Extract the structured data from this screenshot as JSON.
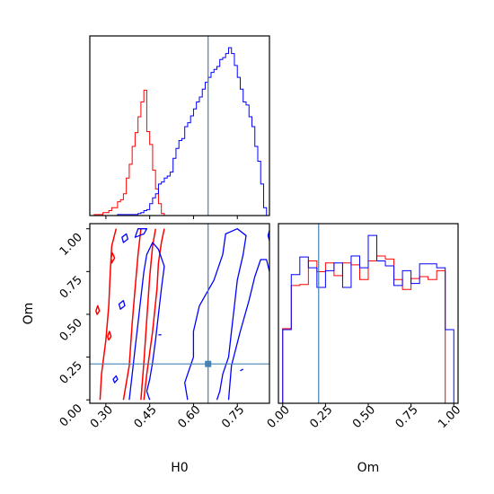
{
  "chart_data": {
    "type": "corner",
    "parameters": [
      "H0",
      "Om"
    ],
    "truth": {
      "H0": 0.65,
      "Om": 0.21
    },
    "colors": {
      "red": "#ff0000",
      "blue": "#0000ff",
      "truth": "#4682b4",
      "axis": "#000000"
    },
    "panels": [
      {
        "id": "hist-H0",
        "type": "histogram",
        "xlabel": "",
        "ylabel": "",
        "xlim": [
          0.245,
          0.86
        ],
        "xticks_shown": false,
        "bin_edges": [
          0.25,
          0.26,
          0.27,
          0.28,
          0.29,
          0.3,
          0.31,
          0.32,
          0.33,
          0.34,
          0.35,
          0.36,
          0.37,
          0.38,
          0.39,
          0.4,
          0.41,
          0.42,
          0.43,
          0.44,
          0.45,
          0.46,
          0.47,
          0.48,
          0.49,
          0.5,
          0.51,
          0.52,
          0.53,
          0.54,
          0.55,
          0.56,
          0.57,
          0.58,
          0.59,
          0.6,
          0.61,
          0.62,
          0.63,
          0.64,
          0.65,
          0.66,
          0.67,
          0.68,
          0.69,
          0.7,
          0.71,
          0.72,
          0.73,
          0.74,
          0.75,
          0.76,
          0.77,
          0.78,
          0.79,
          0.8,
          0.81,
          0.82,
          0.83,
          0.84,
          0.85,
          0.86
        ],
        "series": [
          {
            "name": "",
            "color": "red",
            "counts": [
              0,
              1,
              1,
              1,
              3,
              3,
              5,
              8,
              8,
              14,
              16,
              22,
              38,
              52,
              70,
              84,
              100,
              115,
              127,
              85,
              72,
              46,
              27,
              12,
              2,
              0,
              0,
              0,
              0,
              0,
              0,
              0,
              0,
              0,
              0,
              0,
              0,
              0,
              0,
              0,
              0,
              0,
              0,
              0,
              0,
              0,
              0,
              0,
              0,
              0,
              0,
              0,
              0,
              0,
              0,
              0,
              0,
              0,
              0,
              0,
              0
            ]
          },
          {
            "name": "",
            "color": "blue",
            "counts": [
              0,
              0,
              0,
              0,
              0,
              0,
              0,
              0,
              0,
              1,
              1,
              1,
              1,
              1,
              1,
              1,
              2,
              3,
              5,
              6,
              12,
              18,
              22,
              32,
              34,
              38,
              40,
              44,
              58,
              68,
              76,
              78,
              90,
              94,
              101,
              108,
              115,
              120,
              128,
              135,
              140,
              145,
              148,
              151,
              158,
              160,
              164,
              170,
              164,
              152,
              140,
              128,
              115,
              112,
              100,
              90,
              70,
              55,
              32,
              8,
              0
            ]
          }
        ]
      },
      {
        "id": "contour-H0-Om",
        "type": "contour",
        "xlabel": "H0",
        "ylabel": "Om",
        "xlim": [
          0.245,
          0.86
        ],
        "ylim": [
          -0.02,
          1.03
        ],
        "xticks": [
          0.3,
          0.45,
          0.6,
          0.75
        ],
        "xtick_labels": [
          "0.30",
          "0.45",
          "0.60",
          "0.75"
        ],
        "yticks": [
          0.0,
          0.25,
          0.5,
          0.75,
          1.0
        ],
        "ytick_labels": [
          "0.00",
          "0.25",
          "0.50",
          "0.75",
          "1.00"
        ],
        "series": [
          {
            "name": "",
            "color": "red",
            "contours": [
              [
                [
                  0.28,
                  0.0
                ],
                [
                  0.285,
                  0.15
                ],
                [
                  0.3,
                  0.35
                ],
                [
                  0.31,
                  0.55
                ],
                [
                  0.315,
                  0.75
                ],
                [
                  0.32,
                  0.9
                ],
                [
                  0.335,
                  1.0
                ]
              ],
              [
                [
                  0.36,
                  0.0
                ],
                [
                  0.38,
                  0.2
                ],
                [
                  0.39,
                  0.45
                ],
                [
                  0.4,
                  0.65
                ],
                [
                  0.41,
                  0.85
                ],
                [
                  0.42,
                  1.0
                ]
              ],
              [
                [
                  0.42,
                  0.0
                ],
                [
                  0.43,
                  0.22
                ],
                [
                  0.44,
                  0.47
                ],
                [
                  0.45,
                  0.72
                ],
                [
                  0.46,
                  0.9
                ],
                [
                  0.47,
                  1.0
                ]
              ],
              [
                [
                  0.43,
                  0.0
                ],
                [
                  0.44,
                  0.15
                ],
                [
                  0.46,
                  0.4
                ],
                [
                  0.475,
                  0.65
                ],
                [
                  0.48,
                  0.8
                ],
                [
                  0.49,
                  0.92
                ],
                [
                  0.5,
                  1.0
                ]
              ],
              [
                [
                  0.32,
                  0.8
                ],
                [
                  0.33,
                  0.83
                ],
                [
                  0.322,
                  0.86
                ],
                [
                  0.318,
                  0.83
                ]
              ],
              [
                [
                  0.27,
                  0.5
                ],
                [
                  0.278,
                  0.52
                ],
                [
                  0.272,
                  0.55
                ],
                [
                  0.266,
                  0.52
                ]
              ],
              [
                [
                  0.31,
                  0.35
                ],
                [
                  0.318,
                  0.37
                ],
                [
                  0.312,
                  0.4
                ],
                [
                  0.306,
                  0.37
                ]
              ]
            ]
          },
          {
            "name": "",
            "color": "blue",
            "contours": [
              [
                [
                  0.58,
                  0.0
                ],
                [
                  0.57,
                  0.1
                ],
                [
                  0.6,
                  0.25
                ],
                [
                  0.6,
                  0.4
                ],
                [
                  0.62,
                  0.55
                ],
                [
                  0.67,
                  0.7
                ],
                [
                  0.7,
                  0.85
                ],
                [
                  0.71,
                  0.97
                ],
                [
                  0.75,
                  1.0
                ],
                [
                  0.78,
                  0.96
                ],
                [
                  0.77,
                  0.85
                ],
                [
                  0.75,
                  0.7
                ],
                [
                  0.74,
                  0.55
                ],
                [
                  0.73,
                  0.4
                ],
                [
                  0.72,
                  0.25
                ],
                [
                  0.7,
                  0.15
                ],
                [
                  0.69,
                  0.05
                ],
                [
                  0.68,
                  0.0
                ]
              ],
              [
                [
                  0.72,
                  0.0
                ],
                [
                  0.73,
                  0.2
                ],
                [
                  0.76,
                  0.4
                ],
                [
                  0.79,
                  0.58
                ],
                [
                  0.81,
                  0.72
                ],
                [
                  0.83,
                  0.82
                ],
                [
                  0.85,
                  0.82
                ],
                [
                  0.86,
                  0.75
                ]
              ],
              [
                [
                  0.86,
                  0.93
                ],
                [
                  0.855,
                  0.96
                ],
                [
                  0.86,
                  0.99
                ]
              ],
              [
                [
                  0.38,
                  0.0
                ],
                [
                  0.39,
                  0.15
                ],
                [
                  0.4,
                  0.3
                ],
                [
                  0.41,
                  0.45
                ],
                [
                  0.42,
                  0.6
                ],
                [
                  0.43,
                  0.75
                ],
                [
                  0.44,
                  0.85
                ],
                [
                  0.46,
                  0.92
                ],
                [
                  0.48,
                  0.88
                ],
                [
                  0.5,
                  0.78
                ],
                [
                  0.49,
                  0.65
                ],
                [
                  0.48,
                  0.5
                ],
                [
                  0.47,
                  0.35
                ],
                [
                  0.46,
                  0.22
                ],
                [
                  0.45,
                  0.12
                ],
                [
                  0.44,
                  0.05
                ],
                [
                  0.45,
                  0.0
                ]
              ],
              [
                [
                  0.4,
                  0.95
                ],
                [
                  0.41,
                  1.0
                ],
                [
                  0.44,
                  1.0
                ],
                [
                  0.43,
                  0.97
                ]
              ],
              [
                [
                  0.35,
                  0.53
                ],
                [
                  0.365,
                  0.55
                ],
                [
                  0.36,
                  0.58
                ],
                [
                  0.345,
                  0.56
                ]
              ],
              [
                [
                  0.36,
                  0.92
                ],
                [
                  0.375,
                  0.94
                ],
                [
                  0.37,
                  0.97
                ],
                [
                  0.355,
                  0.95
                ]
              ],
              [
                [
                  0.33,
                  0.1
                ],
                [
                  0.34,
                  0.12
                ],
                [
                  0.335,
                  0.14
                ],
                [
                  0.325,
                  0.12
                ]
              ],
              [
                [
                  0.48,
                  0.38
                ],
                [
                  0.49,
                  0.38
                ]
              ],
              [
                [
                  0.76,
                  0.17
                ],
                [
                  0.77,
                  0.18
                ]
              ]
            ]
          }
        ]
      },
      {
        "id": "hist-Om",
        "type": "histogram",
        "xlabel": "Om",
        "ylabel": "",
        "xlim": [
          -0.025,
          1.025
        ],
        "xticks": [
          0.0,
          0.25,
          0.5,
          0.75,
          1.0
        ],
        "xtick_labels": [
          "0.00",
          "0.25",
          "0.50",
          "0.75",
          "1.00"
        ],
        "bin_edges": [
          0.0,
          0.05,
          0.1,
          0.15,
          0.2,
          0.25,
          0.3,
          0.35,
          0.4,
          0.45,
          0.5,
          0.55,
          0.6,
          0.65,
          0.7,
          0.75,
          0.8,
          0.85,
          0.9,
          0.95,
          1.0
        ],
        "series": [
          {
            "name": "",
            "color": "red",
            "counts": [
              76,
              120,
              121,
              145,
              134,
              143,
              130,
              143,
              141,
              126,
              145,
              150,
              147,
              126,
              116,
              127,
              129,
              126,
              135,
              0
            ]
          },
          {
            "name": "",
            "color": "blue",
            "counts": [
              75,
              131,
              149,
              138,
              118,
              135,
              143,
              118,
              150,
              138,
              171,
              145,
              140,
              120,
              135,
              122,
              142,
              142,
              138,
              75
            ]
          }
        ]
      }
    ]
  }
}
